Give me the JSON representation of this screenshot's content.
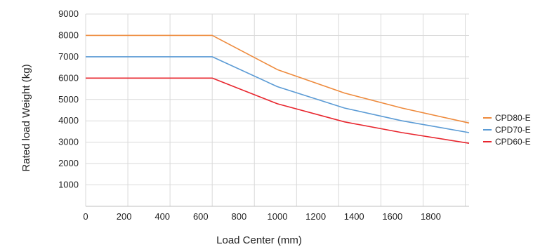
{
  "chart_data": {
    "type": "line",
    "title": "",
    "xlabel": "Load Center (mm)",
    "ylabel": "Rated load Weight  (kg)",
    "xlim": [
      0,
      2000
    ],
    "ylim": [
      0,
      9000
    ],
    "x_ticks": [
      {
        "value": 0,
        "label": "0"
      },
      {
        "value": 200,
        "label": "200"
      },
      {
        "value": 400,
        "label": "400"
      },
      {
        "value": 600,
        "label": "600"
      },
      {
        "value": 800,
        "label": "800"
      },
      {
        "value": 1000,
        "label": "1000"
      },
      {
        "value": 1200,
        "label": "1200"
      },
      {
        "value": 1400,
        "label": "1400"
      },
      {
        "value": 1600,
        "label": "1600"
      },
      {
        "value": 1800,
        "label": "1800"
      }
    ],
    "x_gridlines": [
      0,
      220,
      440,
      660,
      880,
      1100,
      1320,
      1540,
      1760,
      1980
    ],
    "y_ticks": [
      1000,
      2000,
      3000,
      4000,
      5000,
      6000,
      7000,
      8000,
      9000
    ],
    "grid": true,
    "legend_position": "right",
    "series": [
      {
        "name": "CPD80-E",
        "color": "#ee8a3c",
        "x": [
          0,
          660,
          1000,
          1350,
          1650,
          2000
        ],
        "y": [
          8000,
          8000,
          6400,
          5300,
          4600,
          3900
        ]
      },
      {
        "name": "CPD70-E",
        "color": "#5b9bd5",
        "x": [
          0,
          660,
          1000,
          1350,
          1650,
          2000
        ],
        "y": [
          7000,
          7000,
          5600,
          4600,
          4000,
          3450
        ]
      },
      {
        "name": "CPD60-E",
        "color": "#e8262e",
        "x": [
          0,
          660,
          1000,
          1350,
          1650,
          2000
        ],
        "y": [
          6000,
          6000,
          4800,
          3950,
          3450,
          2950
        ]
      }
    ]
  }
}
